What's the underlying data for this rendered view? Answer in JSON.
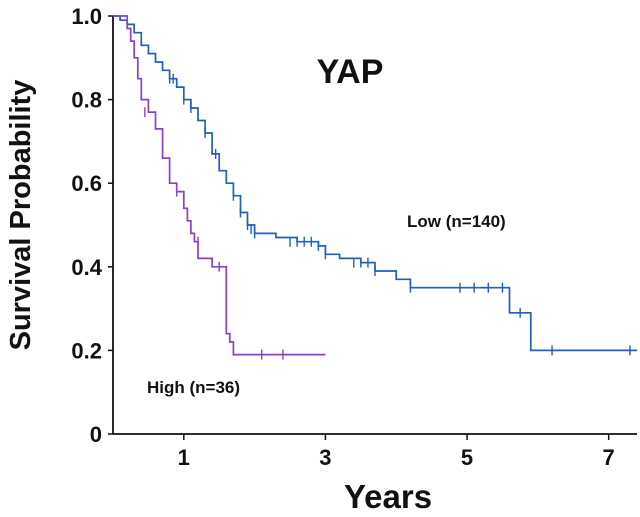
{
  "chart_data": {
    "type": "line",
    "title": "YAP",
    "xlabel": "Years",
    "ylabel": "Survival Probability",
    "xlim": [
      0,
      7.4
    ],
    "ylim": [
      0,
      1.0
    ],
    "x_ticks": [
      "1",
      "3",
      "5",
      "7"
    ],
    "y_ticks": [
      "0",
      "0.2",
      "0.4",
      "0.6",
      "0.8",
      "1.0"
    ],
    "grid": false,
    "series": [
      {
        "name": "Low (n=140)",
        "color": "#1f5fc4",
        "step": true,
        "x": [
          0,
          0.1,
          0.2,
          0.3,
          0.4,
          0.5,
          0.6,
          0.7,
          0.8,
          0.9,
          1.0,
          1.1,
          1.2,
          1.3,
          1.4,
          1.5,
          1.6,
          1.7,
          1.8,
          1.9,
          2.0,
          2.3,
          2.6,
          2.9,
          3.0,
          3.2,
          3.5,
          3.7,
          4.0,
          4.2,
          4.6,
          5.0,
          5.3,
          5.5,
          5.6,
          5.7,
          5.9,
          6.2,
          6.6,
          7.0,
          7.4
        ],
        "y": [
          1.0,
          0.99,
          0.98,
          0.96,
          0.93,
          0.91,
          0.89,
          0.87,
          0.85,
          0.83,
          0.8,
          0.78,
          0.75,
          0.72,
          0.67,
          0.63,
          0.6,
          0.57,
          0.53,
          0.5,
          0.48,
          0.47,
          0.46,
          0.45,
          0.43,
          0.42,
          0.41,
          0.39,
          0.37,
          0.35,
          0.35,
          0.35,
          0.35,
          0.35,
          0.29,
          0.29,
          0.2,
          0.2,
          0.2,
          0.2,
          0.2
        ],
        "censor_x": [
          0.8,
          0.85,
          1.0,
          1.1,
          1.3,
          1.45,
          1.7,
          1.8,
          1.9,
          1.95,
          2.0,
          2.5,
          2.6,
          2.7,
          2.8,
          2.9,
          3.0,
          3.4,
          3.5,
          3.6,
          3.7,
          4.2,
          4.9,
          5.1,
          5.3,
          5.5,
          5.75,
          6.2,
          7.3
        ],
        "censor_y": [
          0.85,
          0.85,
          0.8,
          0.78,
          0.72,
          0.67,
          0.57,
          0.53,
          0.5,
          0.49,
          0.48,
          0.46,
          0.46,
          0.46,
          0.46,
          0.45,
          0.43,
          0.41,
          0.41,
          0.41,
          0.39,
          0.35,
          0.35,
          0.35,
          0.35,
          0.35,
          0.29,
          0.2,
          0.2
        ]
      },
      {
        "name": "High (n=36)",
        "color": "#8a3fd1",
        "step": true,
        "x": [
          0,
          0.2,
          0.25,
          0.3,
          0.35,
          0.4,
          0.5,
          0.6,
          0.7,
          0.8,
          0.9,
          1.0,
          1.05,
          1.1,
          1.15,
          1.2,
          1.4,
          1.6,
          1.65,
          1.7,
          2.1,
          2.5,
          3.0
        ],
        "y": [
          1.0,
          0.97,
          0.94,
          0.9,
          0.85,
          0.8,
          0.77,
          0.73,
          0.66,
          0.6,
          0.58,
          0.54,
          0.51,
          0.48,
          0.46,
          0.42,
          0.4,
          0.24,
          0.22,
          0.19,
          0.19,
          0.19,
          0.19
        ],
        "censor_x": [
          0.45,
          0.9,
          1.2,
          1.5,
          2.1,
          2.4
        ],
        "censor_y": [
          0.77,
          0.58,
          0.46,
          0.4,
          0.19,
          0.19
        ]
      }
    ],
    "annotations": [
      {
        "text": "Low (n=140)",
        "series": 0
      },
      {
        "text": "High  (n=36)",
        "series": 1
      }
    ]
  }
}
